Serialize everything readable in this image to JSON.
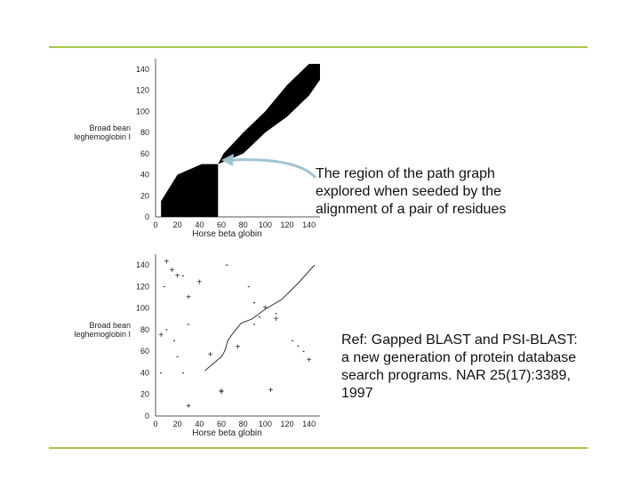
{
  "colors": {
    "rule": "#a8c64a",
    "arrow": "#9fc3cf",
    "ink": "#000000"
  },
  "plots": [
    {
      "xlabel": "Horse beta globin",
      "ylabel_lines": [
        "Broad bean",
        "leghemoglobin I"
      ],
      "xticks": [
        0,
        20,
        40,
        60,
        80,
        100,
        120,
        140
      ],
      "yticks": [
        0,
        20,
        40,
        60,
        80,
        100,
        120,
        140
      ],
      "fill_regions": [
        {
          "x": [
            5,
            5,
            20,
            42,
            57,
            57,
            40,
            20
          ],
          "y": [
            0,
            15,
            40,
            50,
            50,
            0,
            0,
            0
          ]
        },
        {
          "x": [
            57,
            62,
            80,
            100,
            120,
            140,
            150,
            150,
            140,
            120,
            100,
            80,
            57
          ],
          "y": [
            50,
            60,
            80,
            100,
            125,
            145,
            145,
            130,
            115,
            95,
            80,
            60,
            50
          ]
        }
      ]
    },
    {
      "xlabel": "Horse beta globin",
      "ylabel_lines": [
        "Broad bean",
        "leghemoglobin I"
      ],
      "xticks": [
        0,
        20,
        40,
        60,
        80,
        100,
        120,
        140
      ],
      "yticks": [
        0,
        20,
        40,
        60,
        80,
        100,
        120,
        140
      ],
      "path": {
        "x": [
          45,
          60,
          63,
          66,
          70,
          78,
          88,
          100,
          115,
          130,
          145
        ],
        "y": [
          42,
          55,
          60,
          70,
          76,
          86,
          90,
          99,
          108,
          123,
          140
        ]
      },
      "plus_points": {
        "x": [
          10,
          15,
          20,
          30,
          40,
          5,
          75,
          100,
          110,
          140,
          60,
          50,
          60,
          30,
          105
        ],
        "y": [
          143,
          135,
          130,
          110,
          124,
          75,
          64,
          100,
          90,
          52,
          22,
          57,
          23,
          9,
          24
        ]
      },
      "dot_points": {
        "x": [
          8,
          25,
          17,
          65,
          90,
          110,
          125,
          130,
          135,
          20,
          10,
          25,
          30,
          5,
          85,
          90,
          95
        ],
        "y": [
          120,
          130,
          70,
          140,
          85,
          95,
          70,
          65,
          60,
          55,
          80,
          40,
          85,
          40,
          120,
          105,
          92
        ]
      }
    }
  ],
  "captions": [
    {
      "lines": [
        "The region of the path graph",
        "explored when seeded by the",
        "alignment of a pair of residues"
      ]
    },
    {
      "lines": [
        "Ref: Gapped BLAST and PSI-BLAST:",
        "a new generation of protein database",
        "search programs. NAR 25(17):3389,",
        "1997"
      ]
    }
  ]
}
